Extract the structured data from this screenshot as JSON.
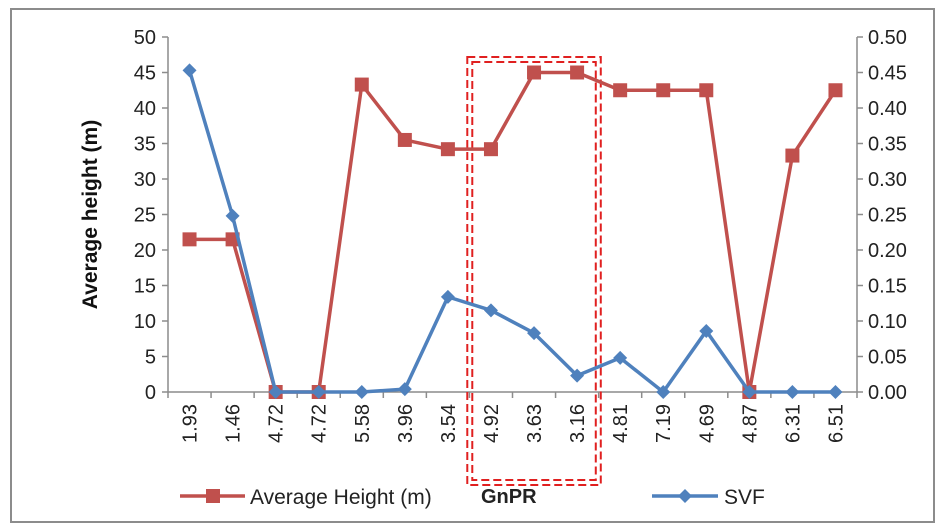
{
  "chart_data": {
    "type": "line",
    "categories": [
      "1.93",
      "1.46",
      "4.72",
      "4.72",
      "5.58",
      "3.96",
      "3.54",
      "4.92",
      "3.63",
      "3.16",
      "4.81",
      "7.19",
      "4.69",
      "4.87",
      "6.31",
      "6.51"
    ],
    "series": [
      {
        "name": "Average Height (m)",
        "axis": "left",
        "color": "#c0504d",
        "marker": "square",
        "values": [
          21.5,
          21.5,
          0,
          0,
          43.3,
          35.5,
          34.2,
          34.2,
          45,
          45,
          42.5,
          42.5,
          42.5,
          0,
          33.3,
          42.5
        ]
      },
      {
        "name": "SVF",
        "axis": "right",
        "color": "#4f81bd",
        "marker": "diamond",
        "values": [
          0.453,
          0.248,
          0.0,
          0.0,
          0.0,
          0.004,
          0.134,
          0.115,
          0.083,
          0.023,
          0.048,
          0.0,
          0.086,
          0.0,
          0.0,
          0.0
        ]
      }
    ],
    "ylabel": "Average height (m)",
    "ylim": [
      0,
      50
    ],
    "yticks": [
      "0",
      "5",
      "10",
      "15",
      "20",
      "25",
      "30",
      "35",
      "40",
      "45",
      "50"
    ],
    "y2lim": [
      0,
      0.5
    ],
    "y2ticks": [
      "0.00",
      "0.05",
      "0.10",
      "0.15",
      "0.20",
      "0.25",
      "0.30",
      "0.35",
      "0.40",
      "0.45",
      "0.50"
    ],
    "annotation": {
      "label": "GnPR",
      "highlight_categories": [
        7,
        9
      ]
    },
    "legend": "bottom",
    "grid": false
  }
}
